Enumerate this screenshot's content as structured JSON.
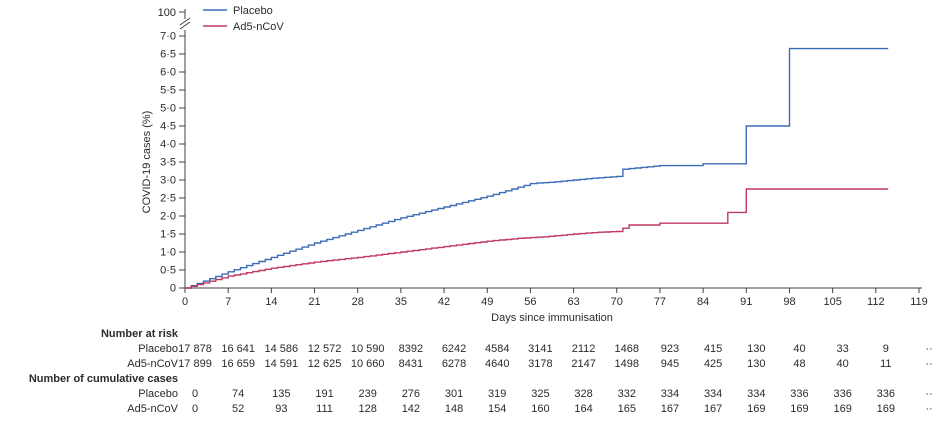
{
  "chart_data": {
    "type": "line",
    "style": "step",
    "title": "",
    "xlabel": "Days since immunisation",
    "ylabel": "COVID-19 cases (%)",
    "xlim": [
      0,
      119
    ],
    "ylim": [
      0,
      7.2
    ],
    "grid": false,
    "legend_position": "top-left",
    "y_axis_break": {
      "top_label": "100"
    },
    "x_ticks": [
      0,
      7,
      14,
      21,
      28,
      35,
      42,
      49,
      56,
      63,
      70,
      77,
      84,
      91,
      98,
      105,
      112,
      119
    ],
    "y_tick_values": [
      0,
      0.5,
      1,
      1.5,
      2,
      2.5,
      3,
      3.5,
      4,
      4.5,
      5,
      5.5,
      6,
      6.5,
      7
    ],
    "y_tick_labels": [
      "0",
      "0·5",
      "1·0",
      "1·5",
      "2·0",
      "2·5",
      "3·0",
      "3·5",
      "4·0",
      "4·5",
      "5·0",
      "5·5",
      "6·0",
      "6·5",
      "7·0"
    ],
    "series": [
      {
        "name": "Placebo",
        "color": "#3b6cb5",
        "points": [
          [
            0,
            0
          ],
          [
            7,
            0.45
          ],
          [
            14,
            0.85
          ],
          [
            21,
            1.25
          ],
          [
            28,
            1.6
          ],
          [
            35,
            1.95
          ],
          [
            42,
            2.25
          ],
          [
            49,
            2.55
          ],
          [
            56,
            2.9
          ],
          [
            60,
            2.95
          ],
          [
            63,
            3.0
          ],
          [
            66,
            3.05
          ],
          [
            70,
            3.1
          ],
          [
            71,
            3.3
          ],
          [
            74,
            3.35
          ],
          [
            77,
            3.4
          ],
          [
            83,
            3.4
          ],
          [
            84,
            3.45
          ],
          [
            90,
            3.45
          ],
          [
            91,
            4.5
          ],
          [
            97,
            4.5
          ],
          [
            98,
            6.65
          ],
          [
            114,
            6.65
          ]
        ]
      },
      {
        "name": "Ad5-nCoV",
        "color": "#c13a5f",
        "points": [
          [
            0,
            0
          ],
          [
            7,
            0.33
          ],
          [
            14,
            0.55
          ],
          [
            21,
            0.72
          ],
          [
            28,
            0.85
          ],
          [
            35,
            1.0
          ],
          [
            42,
            1.15
          ],
          [
            49,
            1.3
          ],
          [
            54,
            1.38
          ],
          [
            58,
            1.42
          ],
          [
            63,
            1.5
          ],
          [
            67,
            1.55
          ],
          [
            70,
            1.57
          ],
          [
            72,
            1.75
          ],
          [
            76,
            1.75
          ],
          [
            77,
            1.8
          ],
          [
            87,
            1.8
          ],
          [
            88,
            2.1
          ],
          [
            90,
            2.1
          ],
          [
            91,
            2.75
          ],
          [
            114,
            2.75
          ]
        ]
      }
    ]
  },
  "tables": {
    "risk": {
      "title": "Number at risk",
      "rows": [
        {
          "label": "Placebo",
          "values": [
            "17 878",
            "16 641",
            "14 586",
            "12 572",
            "10 590",
            "8392",
            "6242",
            "4584",
            "3141",
            "2112",
            "1468",
            "923",
            "415",
            "130",
            "40",
            "33",
            "9",
            "··"
          ]
        },
        {
          "label": "Ad5-nCoV",
          "values": [
            "17 899",
            "16 659",
            "14 591",
            "12 625",
            "10 660",
            "8431",
            "6278",
            "4640",
            "3178",
            "2147",
            "1498",
            "945",
            "425",
            "130",
            "48",
            "40",
            "11",
            "··"
          ]
        }
      ]
    },
    "cumulative": {
      "title": "Number of cumulative cases",
      "rows": [
        {
          "label": "Placebo",
          "values": [
            "0",
            "74",
            "135",
            "191",
            "239",
            "276",
            "301",
            "319",
            "325",
            "328",
            "332",
            "334",
            "334",
            "334",
            "336",
            "336",
            "336",
            "··"
          ]
        },
        {
          "label": "Ad5-nCoV",
          "values": [
            "0",
            "52",
            "93",
            "111",
            "128",
            "142",
            "148",
            "154",
            "160",
            "164",
            "165",
            "167",
            "167",
            "169",
            "169",
            "169",
            "169",
            "··"
          ]
        }
      ]
    }
  }
}
